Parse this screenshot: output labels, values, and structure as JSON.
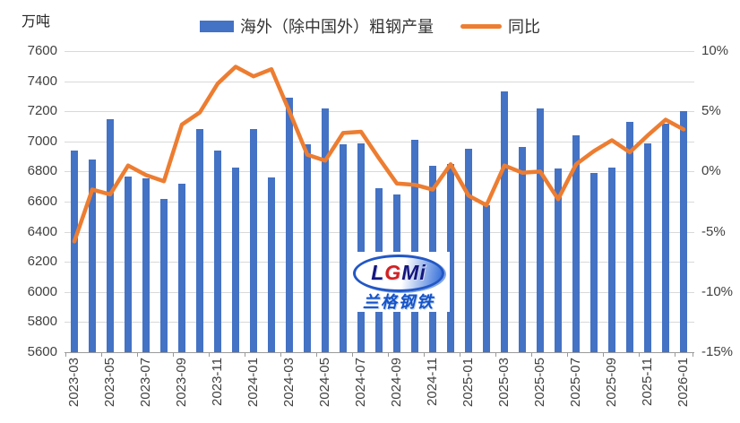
{
  "unit_label": "万吨",
  "legend": {
    "bar_label": "海外（除中国外）粗钢产量",
    "line_label": "同比"
  },
  "watermark": {
    "logo_text_l": "L",
    "logo_text_g": "G",
    "logo_text_mi": "Mi",
    "company_name": "兰格钢铁"
  },
  "colors": {
    "bar": "#4472C4",
    "line": "#ED7D31",
    "gridline": "#D9D9D9",
    "axis": "#9a9a9a",
    "text": "#404040"
  },
  "chart_data": {
    "type": "bar",
    "subtype": "bar+line-dual-axis",
    "title": "",
    "grid": true,
    "legend_position": "top",
    "categories": [
      "2023-03",
      "2023-04",
      "2023-05",
      "2023-06",
      "2023-07",
      "2023-08",
      "2023-09",
      "2023-10",
      "2023-11",
      "2023-12",
      "2024-01",
      "2024-02",
      "2024-03",
      "2024-04",
      "2024-05",
      "2024-06",
      "2024-07",
      "2024-08",
      "2024-09",
      "2024-10",
      "2024-11",
      "2024-12",
      "2025-01",
      "2025-02",
      "2025-03",
      "2025-04",
      "2025-05",
      "2025-06",
      "2025-07",
      "2025-08",
      "2025-09",
      "2025-10",
      "2025-11",
      "2025-12",
      "2026-01"
    ],
    "series": [
      {
        "name": "海外（除中国外）粗钢产量",
        "type": "bar",
        "axis": "left",
        "unit": "万吨",
        "color": "#4472C4",
        "values": [
          6940,
          6880,
          7150,
          6765,
          6755,
          6620,
          6720,
          7080,
          6940,
          6825,
          7085,
          6760,
          7290,
          6980,
          7220,
          6980,
          6985,
          6690,
          6645,
          7010,
          6840,
          6850,
          6950,
          6575,
          7330,
          6965,
          7220,
          6820,
          7040,
          6790,
          6825,
          7130,
          6990,
          7120,
          7200
        ]
      },
      {
        "name": "同比",
        "type": "line",
        "axis": "right",
        "unit": "%",
        "color": "#ED7D31",
        "values": [
          -5.8,
          -1.5,
          -1.9,
          0.5,
          -0.3,
          -0.8,
          3.9,
          4.9,
          7.3,
          8.7,
          7.9,
          8.5,
          5.0,
          1.4,
          0.9,
          3.2,
          3.3,
          1.1,
          -1.0,
          -1.1,
          -1.5,
          0.6,
          -2.0,
          -2.8,
          0.5,
          -0.1,
          0.0,
          -2.3,
          0.6,
          1.7,
          2.6,
          1.6,
          3.0,
          4.3,
          3.5
        ]
      }
    ],
    "left_axis": {
      "label": "万吨",
      "min": 5600,
      "max": 7600,
      "step": 200
    },
    "right_axis": {
      "min": -15,
      "max": 10,
      "step": 5,
      "suffix": "%"
    },
    "x_axis": {
      "label_interval": 2
    }
  }
}
